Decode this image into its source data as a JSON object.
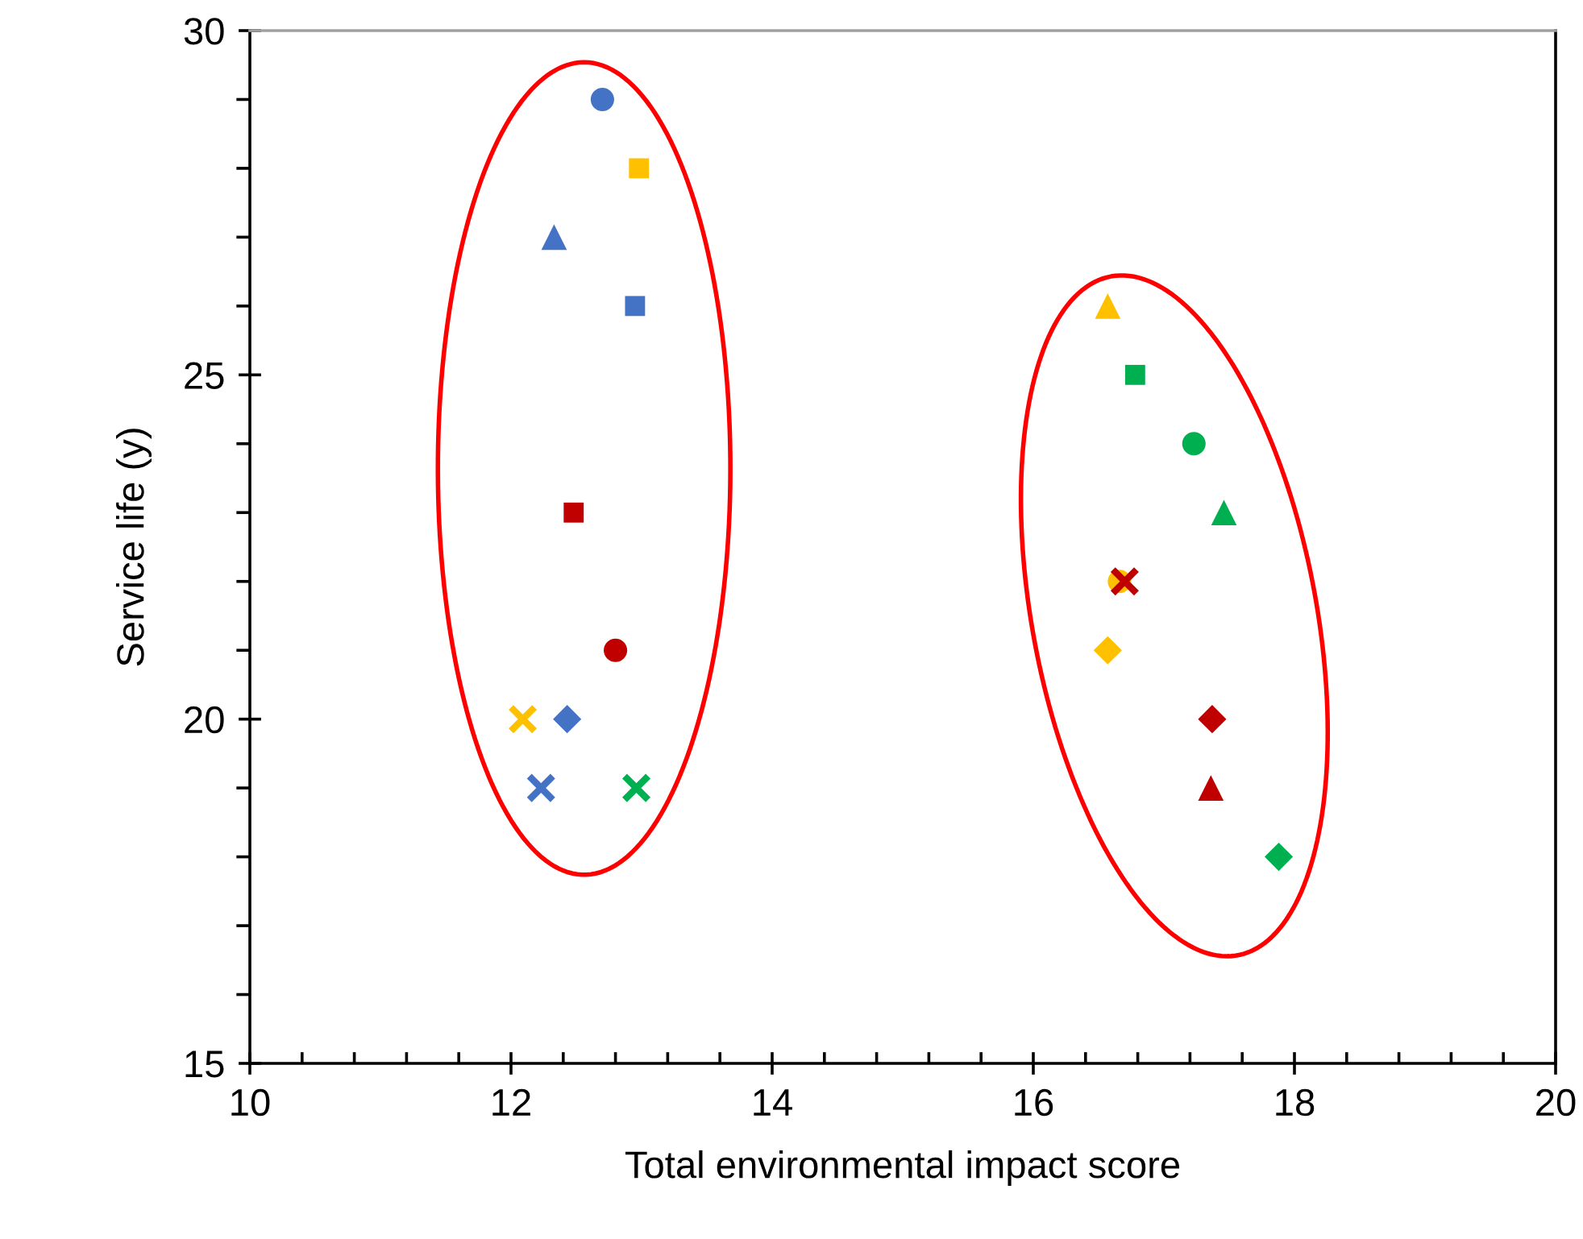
{
  "chart_data": {
    "type": "scatter",
    "xlabel": "Total environmental impact score",
    "ylabel": "Service life (y)",
    "xlim": [
      10,
      20
    ],
    "xticks": [
      10,
      12,
      14,
      16,
      18,
      20
    ],
    "ylim": [
      15,
      30
    ],
    "yticks": [
      15,
      20,
      25,
      30
    ],
    "grid": false,
    "legend": false,
    "series": [
      {
        "color": "#4472c4",
        "marker": "circle",
        "x": [
          12.7
        ],
        "values": [
          29
        ]
      },
      {
        "color": "#ffc000",
        "marker": "square",
        "x": [
          12.98
        ],
        "values": [
          28
        ]
      },
      {
        "color": "#4472c4",
        "marker": "triangle",
        "x": [
          12.33
        ],
        "values": [
          27
        ]
      },
      {
        "color": "#4472c4",
        "marker": "square",
        "x": [
          12.95
        ],
        "values": [
          26
        ]
      },
      {
        "color": "#c00000",
        "marker": "square",
        "x": [
          12.48
        ],
        "values": [
          23
        ]
      },
      {
        "color": "#c00000",
        "marker": "circle",
        "x": [
          12.8
        ],
        "values": [
          21
        ]
      },
      {
        "color": "#ffc000",
        "marker": "cross",
        "x": [
          12.09
        ],
        "values": [
          20
        ]
      },
      {
        "color": "#4472c4",
        "marker": "diamond",
        "x": [
          12.43
        ],
        "values": [
          20
        ]
      },
      {
        "color": "#4472c4",
        "marker": "cross",
        "x": [
          12.23
        ],
        "values": [
          19
        ]
      },
      {
        "color": "#00b050",
        "marker": "cross",
        "x": [
          12.96
        ],
        "values": [
          19
        ]
      },
      {
        "color": "#ffc000",
        "marker": "triangle",
        "x": [
          16.57
        ],
        "values": [
          26
        ]
      },
      {
        "color": "#00b050",
        "marker": "square",
        "x": [
          16.78
        ],
        "values": [
          25
        ]
      },
      {
        "color": "#00b050",
        "marker": "circle",
        "x": [
          17.23
        ],
        "values": [
          24
        ]
      },
      {
        "color": "#00b050",
        "marker": "triangle",
        "x": [
          17.46
        ],
        "values": [
          23
        ]
      },
      {
        "color": "#ffc000",
        "marker": "circle",
        "x": [
          16.66
        ],
        "values": [
          22
        ]
      },
      {
        "color": "#c00000",
        "marker": "cross",
        "x": [
          16.7
        ],
        "values": [
          22
        ]
      },
      {
        "color": "#ffc000",
        "marker": "diamond",
        "x": [
          16.57
        ],
        "values": [
          21
        ]
      },
      {
        "color": "#c00000",
        "marker": "diamond",
        "x": [
          17.37
        ],
        "values": [
          20
        ]
      },
      {
        "color": "#c00000",
        "marker": "triangle",
        "x": [
          17.36
        ],
        "values": [
          19
        ]
      },
      {
        "color": "#00b050",
        "marker": "diamond",
        "x": [
          17.88
        ],
        "values": [
          18
        ]
      }
    ]
  }
}
